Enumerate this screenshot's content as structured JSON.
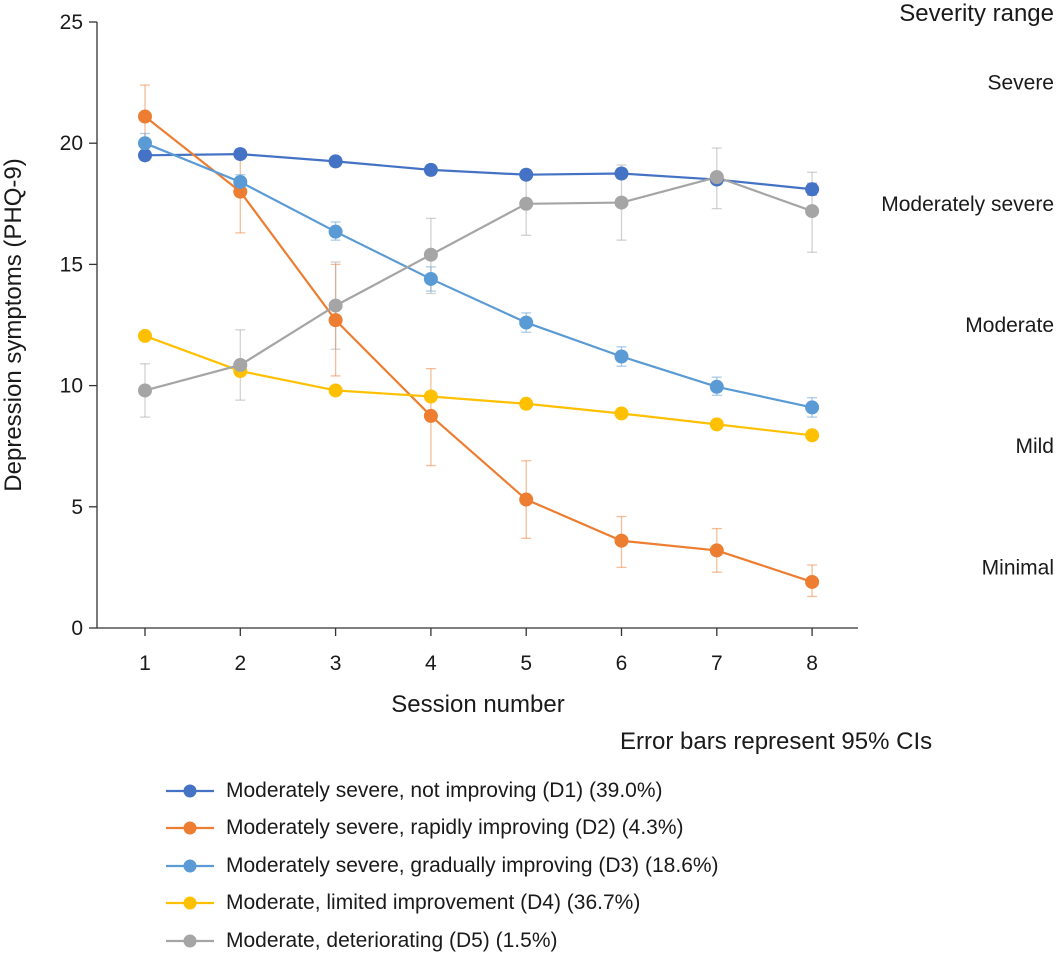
{
  "chart_data": {
    "type": "line",
    "categories": [
      1,
      2,
      3,
      4,
      5,
      6,
      7,
      8
    ],
    "xlabel": "Session number",
    "ylabel": "Depression symptoms (PHQ-9)",
    "ylim": [
      0,
      25
    ],
    "yticks": [
      0,
      5,
      10,
      15,
      20,
      25
    ],
    "grid": false,
    "error_note": "Error bars represent 95% CIs",
    "series": [
      {
        "name": "Moderately severe, not improving (D1) (39.0%)",
        "color": "#4472C4",
        "values": [
          19.5,
          19.55,
          19.25,
          18.9,
          18.7,
          18.75,
          18.5,
          18.1
        ],
        "ci": [
          [
            19.3,
            19.7
          ],
          [
            19.35,
            19.75
          ],
          [
            19.05,
            19.45
          ],
          [
            18.7,
            19.1
          ],
          [
            18.5,
            18.9
          ],
          [
            18.55,
            18.95
          ],
          [
            18.3,
            18.7
          ],
          [
            17.85,
            18.35
          ]
        ]
      },
      {
        "name": "Moderately severe, rapidly improving (D2) (4.3%)",
        "color": "#ED7D31",
        "values": [
          21.1,
          18.0,
          12.7,
          8.75,
          5.3,
          3.6,
          3.2,
          1.9
        ],
        "ci": [
          [
            19.9,
            22.4
          ],
          [
            16.3,
            19.5
          ],
          [
            10.4,
            15.0
          ],
          [
            6.7,
            10.7
          ],
          [
            3.7,
            6.9
          ],
          [
            2.5,
            4.6
          ],
          [
            2.3,
            4.1
          ],
          [
            1.3,
            2.6
          ]
        ]
      },
      {
        "name": "Moderately severe, gradually improving (D3) (18.6%)",
        "color": "#5B9BD5",
        "values": [
          20.0,
          18.4,
          16.35,
          14.4,
          12.6,
          11.2,
          9.95,
          9.1
        ],
        "ci": [
          [
            19.7,
            20.4
          ],
          [
            18.1,
            18.7
          ],
          [
            16.0,
            16.75
          ],
          [
            13.9,
            14.9
          ],
          [
            12.2,
            13.0
          ],
          [
            10.8,
            11.6
          ],
          [
            9.6,
            10.35
          ],
          [
            8.7,
            9.5
          ]
        ]
      },
      {
        "name": "Moderate, limited improvement (D4) (36.7%)",
        "color": "#FFC000",
        "values": [
          12.05,
          10.6,
          9.8,
          9.55,
          9.25,
          8.85,
          8.4,
          7.95
        ],
        "ci": [
          [
            11.9,
            12.2
          ],
          [
            10.45,
            10.75
          ],
          [
            9.65,
            9.95
          ],
          [
            9.4,
            9.7
          ],
          [
            9.1,
            9.4
          ],
          [
            8.7,
            9.0
          ],
          [
            8.25,
            8.55
          ],
          [
            7.8,
            8.1
          ]
        ]
      },
      {
        "name": "Moderate, deteriorating (D5) (1.5%)",
        "color": "#A5A5A5",
        "values": [
          9.8,
          10.85,
          13.3,
          15.4,
          17.5,
          17.55,
          18.6,
          17.2
        ],
        "ci": [
          [
            8.7,
            10.9
          ],
          [
            9.4,
            12.3
          ],
          [
            11.5,
            15.1
          ],
          [
            13.8,
            16.9
          ],
          [
            16.2,
            18.8
          ],
          [
            16.0,
            19.1
          ],
          [
            17.3,
            19.8
          ],
          [
            15.5,
            18.8
          ]
        ]
      }
    ],
    "severity_title": "Severity range",
    "severity_ranges": [
      {
        "label": "Severe",
        "value": 22.5
      },
      {
        "label": "Moderately severe",
        "value": 17.5
      },
      {
        "label": "Moderate",
        "value": 12.5
      },
      {
        "label": "Mild",
        "value": 7.5
      },
      {
        "label": "Minimal",
        "value": 2.5
      }
    ]
  }
}
